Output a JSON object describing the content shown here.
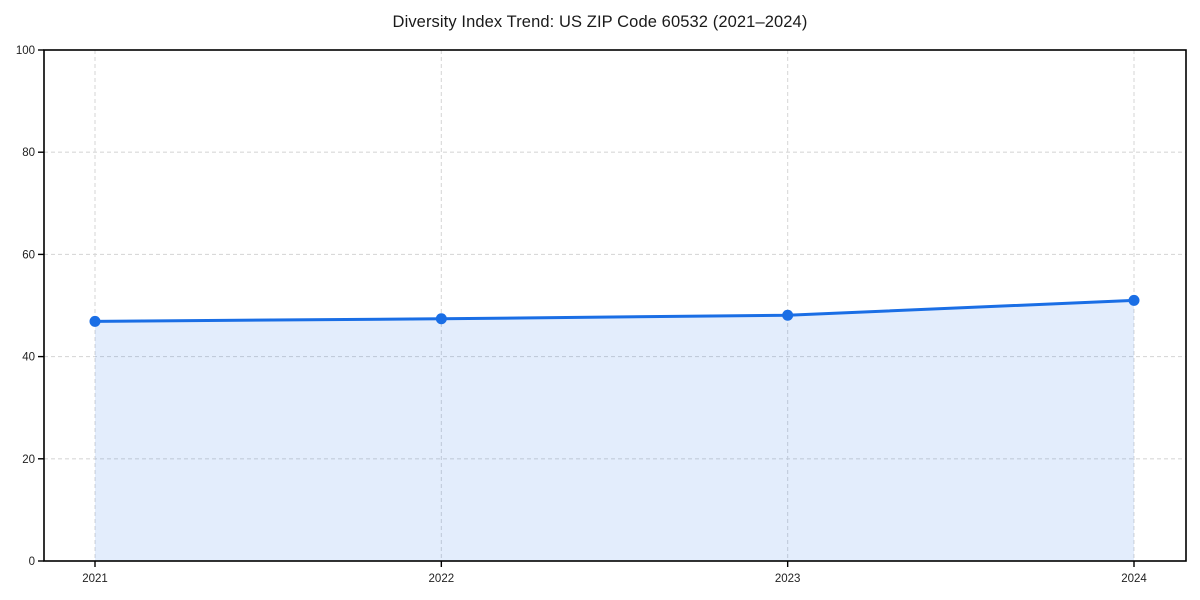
{
  "title": "Diversity Index Trend: US ZIP Code 60532 (2021–2024)",
  "colors": {
    "line": "#1a6ee5",
    "marker": "#1a6ee5",
    "area_fill": "rgba(26, 110, 229, 0.12)",
    "grid": "#d9d9d9",
    "axis": "#000000",
    "tick_label": "#222222",
    "title_text": "#1a1a1a",
    "background": "#ffffff"
  },
  "chart_data": {
    "type": "line",
    "title": "Diversity Index Trend: US ZIP Code 60532 (2021–2024)",
    "x": [
      2021,
      2022,
      2023,
      2024
    ],
    "xticklabels": [
      "2021",
      "2022",
      "2023",
      "2024"
    ],
    "series": [
      {
        "name": "Diversity Index",
        "values": [
          46.9,
          47.4,
          48.1,
          51.0
        ]
      }
    ],
    "yticks": [
      0,
      20,
      40,
      60,
      80,
      100
    ],
    "yticklabels": [
      "0",
      "20",
      "40",
      "60",
      "80",
      "100"
    ],
    "ylim": [
      0,
      100
    ],
    "xlabel": "",
    "ylabel": "",
    "grid": true,
    "grid_style": "dashed",
    "legend": false,
    "area_fill_below_line": true,
    "markers": "circle"
  }
}
